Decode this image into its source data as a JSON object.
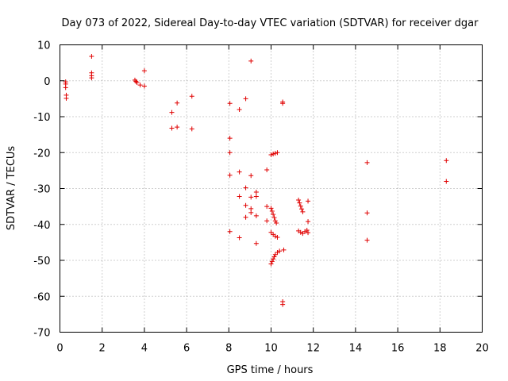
{
  "chart_data": {
    "type": "scatter",
    "title": "Day 073 of 2022, Sidereal Day-to-day VTEC variation (SDTVAR) for receiver dgar",
    "xlabel": "GPS time / hours",
    "ylabel": "SDTVAR / TECUs",
    "xlim": [
      0,
      20
    ],
    "ylim": [
      -70,
      10
    ],
    "xticks": [
      "0",
      "2",
      "4",
      "6",
      "8",
      "10",
      "12",
      "14",
      "16",
      "18",
      "20"
    ],
    "yticks": [
      "10",
      "0",
      "-10",
      "-20",
      "-30",
      "-40",
      "-50",
      "-60",
      "-70"
    ],
    "grid": true,
    "marker": "+",
    "color": "#e00000",
    "series": [
      {
        "name": "dgar",
        "points": [
          [
            0.27,
            -0.3
          ],
          [
            0.27,
            -0.9
          ],
          [
            0.27,
            -1.9
          ],
          [
            0.3,
            -4.0
          ],
          [
            0.3,
            -4.9
          ],
          [
            1.5,
            6.8
          ],
          [
            1.5,
            2.2
          ],
          [
            1.5,
            1.4
          ],
          [
            1.5,
            0.8
          ],
          [
            3.55,
            0.2
          ],
          [
            3.6,
            -0.2
          ],
          [
            3.65,
            -0.5
          ],
          [
            3.8,
            -1.2
          ],
          [
            4.0,
            -1.5
          ],
          [
            4.0,
            2.8
          ],
          [
            5.3,
            -8.8
          ],
          [
            5.3,
            -13.2
          ],
          [
            5.55,
            -6.2
          ],
          [
            5.55,
            -12.9
          ],
          [
            6.25,
            -4.3
          ],
          [
            6.25,
            -13.4
          ],
          [
            8.05,
            -6.3
          ],
          [
            8.05,
            -16.0
          ],
          [
            8.05,
            -20.0
          ],
          [
            8.05,
            -26.3
          ],
          [
            8.05,
            -42.0
          ],
          [
            8.5,
            -8.0
          ],
          [
            8.5,
            -25.4
          ],
          [
            8.5,
            -32.2
          ],
          [
            8.5,
            -43.7
          ],
          [
            8.8,
            -5.0
          ],
          [
            8.8,
            -29.8
          ],
          [
            8.8,
            -34.7
          ],
          [
            8.8,
            -38.0
          ],
          [
            9.05,
            5.5
          ],
          [
            9.05,
            -26.4
          ],
          [
            9.05,
            -32.4
          ],
          [
            9.05,
            -35.6
          ],
          [
            9.05,
            -36.7
          ],
          [
            9.3,
            -31.0
          ],
          [
            9.3,
            -32.2
          ],
          [
            9.3,
            -37.6
          ],
          [
            9.3,
            -45.3
          ],
          [
            9.8,
            -24.8
          ],
          [
            9.8,
            -35.0
          ],
          [
            9.8,
            -39.0
          ],
          [
            10.0,
            -20.6
          ],
          [
            10.1,
            -20.4
          ],
          [
            10.2,
            -20.2
          ],
          [
            10.3,
            -20.0
          ],
          [
            10.0,
            -35.5
          ],
          [
            10.05,
            -36.3
          ],
          [
            10.1,
            -37.2
          ],
          [
            10.15,
            -38.1
          ],
          [
            10.2,
            -39.0
          ],
          [
            10.25,
            -39.6
          ],
          [
            10.0,
            -42.2
          ],
          [
            10.1,
            -42.8
          ],
          [
            10.2,
            -43.3
          ],
          [
            10.3,
            -43.6
          ],
          [
            10.0,
            -51.0
          ],
          [
            10.05,
            -50.3
          ],
          [
            10.1,
            -49.6
          ],
          [
            10.15,
            -49.0
          ],
          [
            10.2,
            -48.4
          ],
          [
            10.3,
            -47.8
          ],
          [
            10.4,
            -47.4
          ],
          [
            10.6,
            -47.1
          ],
          [
            10.55,
            -5.9
          ],
          [
            10.55,
            -6.3
          ],
          [
            10.55,
            -61.5
          ],
          [
            10.55,
            -62.3
          ],
          [
            11.3,
            -33.2
          ],
          [
            11.35,
            -34.0
          ],
          [
            11.4,
            -34.9
          ],
          [
            11.45,
            -35.7
          ],
          [
            11.5,
            -36.5
          ],
          [
            11.3,
            -41.8
          ],
          [
            11.4,
            -42.2
          ],
          [
            11.5,
            -42.5
          ],
          [
            11.6,
            -42.0
          ],
          [
            11.7,
            -41.6
          ],
          [
            11.75,
            -33.5
          ],
          [
            11.75,
            -39.2
          ],
          [
            11.75,
            -42.3
          ],
          [
            14.55,
            -22.8
          ],
          [
            14.55,
            -36.8
          ],
          [
            14.55,
            -44.4
          ],
          [
            18.3,
            -22.2
          ],
          [
            18.3,
            -28.0
          ]
        ]
      }
    ]
  }
}
